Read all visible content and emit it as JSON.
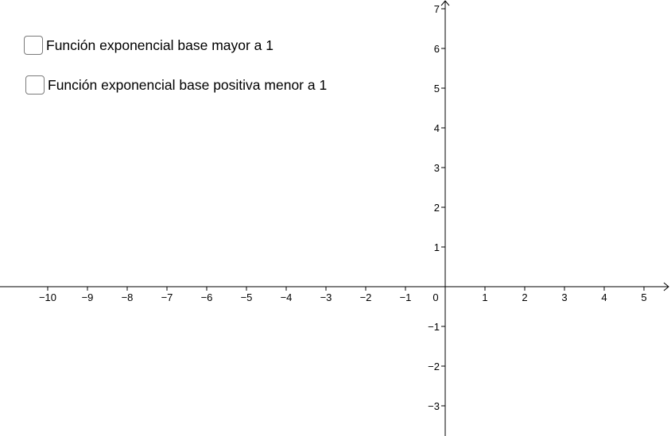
{
  "checkboxes": [
    {
      "label": "Función exponencial base mayor a 1",
      "checked": false
    },
    {
      "label": "Función exponencial base positiva menor a 1",
      "checked": false
    }
  ],
  "axes": {
    "x_range": [
      -11,
      5.6
    ],
    "y_range": [
      -3.7,
      7.0
    ],
    "x_ticks": [
      "−10",
      "−9",
      "−8",
      "−7",
      "−6",
      "−5",
      "−4",
      "−3",
      "−2",
      "−1",
      "1",
      "2",
      "3",
      "4",
      "5"
    ],
    "y_ticks": [
      "7",
      "6",
      "5",
      "4",
      "3",
      "2",
      "1",
      "−1",
      "−2",
      "−3"
    ],
    "origin_label": "0",
    "axis_color": "#000000"
  }
}
